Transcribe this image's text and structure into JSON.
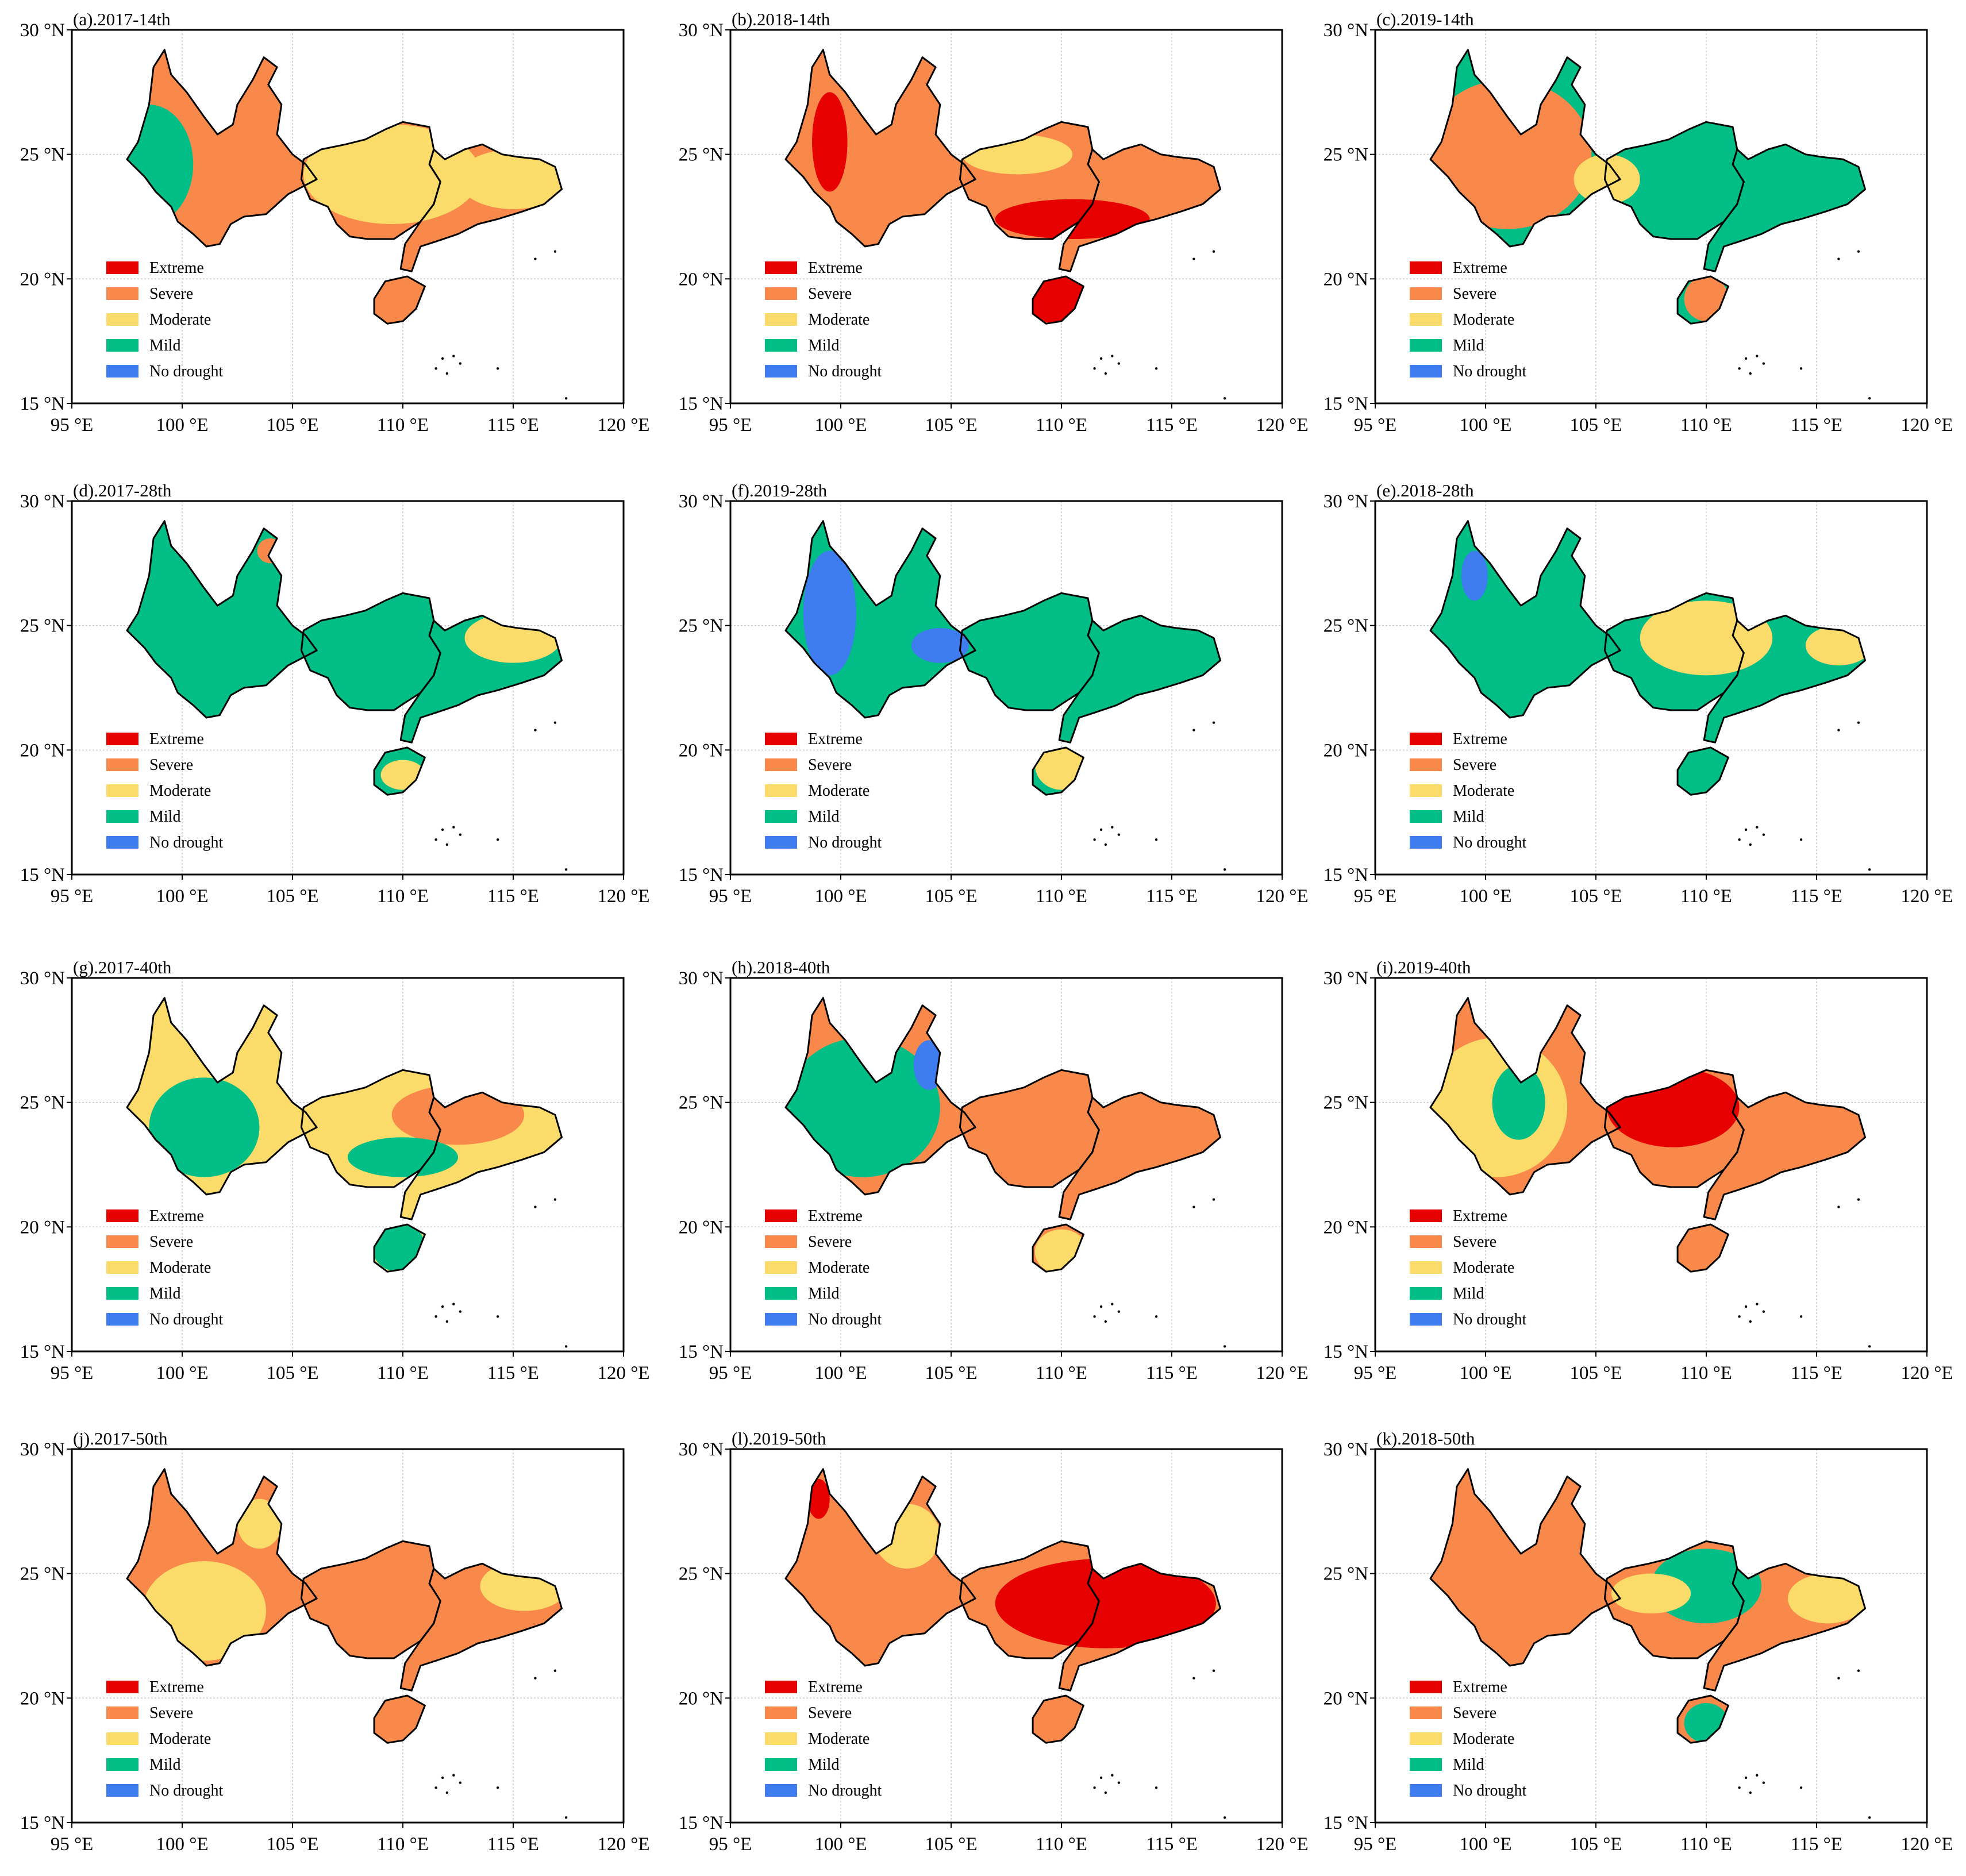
{
  "colors": {
    "Extreme": "#e60000",
    "Severe": "#f9894b",
    "Moderate": "#fbdb6a",
    "Mild": "#00be86",
    "No drought": "#3f7cf0"
  },
  "legend": [
    "Extreme",
    "Severe",
    "Moderate",
    "Mild",
    "No drought"
  ],
  "axes": {
    "lon_ticks": [
      "95 °E",
      "100 °E",
      "105 °E",
      "110 °E",
      "115 °E",
      "120 °E"
    ],
    "lat_ticks": [
      "30 °N",
      "25 °N",
      "20 °N",
      "15 °N"
    ],
    "lon_range": [
      95,
      120
    ],
    "lat_range": [
      15,
      30
    ],
    "grid": true
  },
  "panels": [
    {
      "title": "(a).2017-14th",
      "dominant": "Severe",
      "patches": [
        [
          "Mild",
          98.5,
          24.6,
          2.0,
          2.4
        ],
        [
          "Moderate",
          109.5,
          24.2,
          4.0,
          2.0
        ],
        [
          "Moderate",
          115.0,
          24.0,
          2.5,
          1.2
        ],
        [
          "Severe",
          110.0,
          19.2,
          1.0,
          0.8
        ]
      ]
    },
    {
      "title": "(b).2018-14th",
      "dominant": "Severe",
      "patches": [
        [
          "Extreme",
          110.5,
          22.4,
          3.5,
          0.8
        ],
        [
          "Extreme",
          109.8,
          19.2,
          1.4,
          1.0
        ],
        [
          "Moderate",
          108.0,
          25.0,
          2.5,
          0.8
        ],
        [
          "Extreme",
          99.5,
          25.5,
          0.8,
          2.0
        ]
      ]
    },
    {
      "title": "(c).2019-14th",
      "dominant": "Mild",
      "patches": [
        [
          "Severe",
          101.0,
          25.0,
          3.8,
          3.0
        ],
        [
          "Severe",
          110.0,
          19.2,
          1.0,
          0.9
        ],
        [
          "Moderate",
          105.5,
          24.0,
          1.5,
          1.0
        ]
      ]
    },
    {
      "title": "(d).2017-28th",
      "dominant": "Mild",
      "patches": [
        [
          "Moderate",
          115.0,
          24.5,
          2.2,
          1.0
        ],
        [
          "Severe",
          104.0,
          28.0,
          0.6,
          0.5
        ],
        [
          "Moderate",
          110.0,
          19.0,
          1.0,
          0.6
        ]
      ]
    },
    {
      "title": "(f).2019-28th",
      "dominant": "Mild",
      "patches": [
        [
          "No drought",
          99.5,
          25.5,
          1.2,
          2.5
        ],
        [
          "No drought",
          104.5,
          24.2,
          1.3,
          0.7
        ],
        [
          "Moderate",
          110.0,
          19.4,
          1.2,
          1.0
        ]
      ]
    },
    {
      "title": "(e).2018-28th",
      "dominant": "Mild",
      "patches": [
        [
          "Moderate",
          110.0,
          24.5,
          3.0,
          1.5
        ],
        [
          "Moderate",
          116.0,
          24.2,
          1.5,
          0.8
        ],
        [
          "No drought",
          99.5,
          27.0,
          0.6,
          1.0
        ]
      ]
    },
    {
      "title": "(g).2017-40th",
      "dominant": "Moderate",
      "patches": [
        [
          "Mild",
          101.0,
          24.0,
          2.5,
          2.0
        ],
        [
          "Severe",
          112.5,
          24.5,
          3.0,
          1.2
        ],
        [
          "Mild",
          110.0,
          22.8,
          2.5,
          0.8
        ],
        [
          "Mild",
          109.8,
          19.2,
          1.2,
          1.0
        ]
      ]
    },
    {
      "title": "(h).2018-40th",
      "dominant": "Severe",
      "patches": [
        [
          "Mild",
          101.0,
          24.8,
          3.5,
          2.8
        ],
        [
          "Moderate",
          110.0,
          19.0,
          1.2,
          0.9
        ],
        [
          "No drought",
          104.0,
          26.5,
          0.7,
          1.0
        ]
      ]
    },
    {
      "title": "(i).2019-40th",
      "dominant": "Severe",
      "patches": [
        [
          "Moderate",
          100.5,
          24.8,
          3.2,
          2.8
        ],
        [
          "Extreme",
          108.5,
          24.8,
          3.0,
          1.6
        ],
        [
          "Mild",
          101.5,
          25.0,
          1.2,
          1.5
        ]
      ]
    },
    {
      "title": "(j).2017-50th",
      "dominant": "Severe",
      "patches": [
        [
          "Moderate",
          101.0,
          23.5,
          2.8,
          2.0
        ],
        [
          "Moderate",
          115.5,
          24.5,
          2.0,
          1.0
        ],
        [
          "Moderate",
          103.5,
          27.0,
          1.0,
          1.0
        ]
      ]
    },
    {
      "title": "(l).2019-50th",
      "dominant": "Severe",
      "patches": [
        [
          "Extreme",
          112.0,
          23.8,
          5.0,
          1.8
        ],
        [
          "Moderate",
          103.0,
          26.5,
          1.5,
          1.3
        ],
        [
          "Extreme",
          99.0,
          28.0,
          0.5,
          0.8
        ]
      ]
    },
    {
      "title": "(k).2018-50th",
      "dominant": "Severe",
      "patches": [
        [
          "Mild",
          110.0,
          24.5,
          2.5,
          1.5
        ],
        [
          "Moderate",
          107.5,
          24.2,
          1.8,
          0.8
        ],
        [
          "Moderate",
          115.5,
          24.0,
          1.8,
          1.0
        ],
        [
          "Mild",
          110.0,
          19.0,
          1.0,
          0.8
        ]
      ]
    }
  ]
}
